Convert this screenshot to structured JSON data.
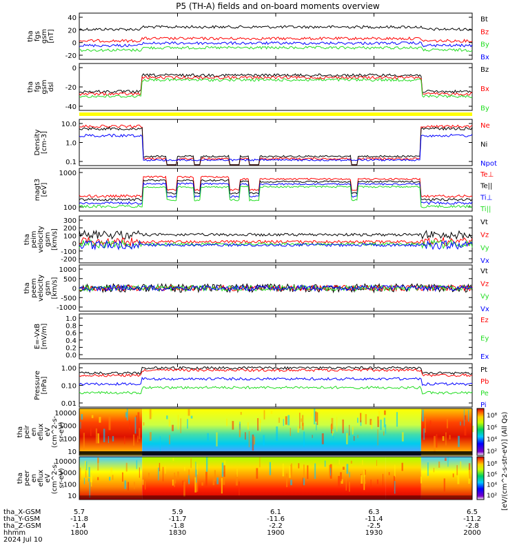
{
  "title": "P5 (TH-A) fields and on-board moments overview",
  "footer": {
    "date": "2024 Jul 10",
    "row_labels": [
      "tha_X-GSM",
      "tha_Y-GSM",
      "tha_Z-GSM",
      "hhmm"
    ],
    "columns": [
      {
        "x": "5.7",
        "y": "-11.8",
        "z": "-1.4",
        "hhmm": "1800"
      },
      {
        "x": "5.9",
        "y": "-11.7",
        "z": "-1.8",
        "hhmm": "1830"
      },
      {
        "x": "6.1",
        "y": "-11.6",
        "z": "-2.2",
        "hhmm": "1900"
      },
      {
        "x": "6.3",
        "y": "-11.4",
        "z": "-2.5",
        "hhmm": "1930"
      },
      {
        "x": "6.5",
        "y": "-11.2",
        "z": "-2.8",
        "hhmm": "2000"
      }
    ]
  },
  "colorbar": {
    "label": "[eV/(cm^2-s-str-eV)] (All Qs)",
    "ticks": [
      "10⁸",
      "10⁶",
      "10⁴",
      "10²"
    ],
    "ticks_lower": [
      "10⁸",
      "10⁶",
      "10⁴",
      "10²"
    ]
  },
  "colors": {
    "black": "#000000",
    "red": "#ff0000",
    "green": "#22dd22",
    "blue": "#0000ff",
    "yellow": "#ffff00"
  },
  "chart_data": [
    {
      "id": "fgs_gsm",
      "type": "line",
      "ylabel": [
        "tha",
        "fgs",
        "gsm",
        "[nT]"
      ],
      "yticks": [
        "40",
        "20",
        "0",
        "-20"
      ],
      "ylim": [
        -30,
        55
      ],
      "series": [
        {
          "name": "Bt",
          "color": "#000000"
        },
        {
          "name": "Bz",
          "color": "#ff0000"
        },
        {
          "name": "By",
          "color": "#22dd22"
        },
        {
          "name": "Bx",
          "color": "#0000ff"
        }
      ]
    },
    {
      "id": "fgs_dsl",
      "type": "line",
      "ylabel": [
        "tha",
        "fgs",
        "gsm",
        "dsl"
      ],
      "yticks": [
        "0",
        "-20",
        "-40"
      ],
      "ylim": [
        -55,
        8
      ],
      "series": [
        {
          "name": "Bz",
          "color": "#000000"
        },
        {
          "name": "Bx",
          "color": "#ff0000"
        },
        {
          "name": "By",
          "color": "#22dd22"
        }
      ]
    },
    {
      "id": "density",
      "type": "line",
      "ylabel": [
        "Density",
        "[cm-3]"
      ],
      "yticks": [
        "10.0",
        "1.0",
        "0.1"
      ],
      "log": true,
      "ylim": [
        0.08,
        30
      ],
      "series": [
        {
          "name": "Ne",
          "color": "#ff0000"
        },
        {
          "name": "Ni",
          "color": "#000000"
        },
        {
          "name": "Npot",
          "color": "#0000ff"
        }
      ]
    },
    {
      "id": "temp",
      "type": "line",
      "ylabel": [
        "magt3",
        "[eV]"
      ],
      "yticks": [
        "1000",
        "100"
      ],
      "log": true,
      "ylim": [
        20,
        3000
      ],
      "series": [
        {
          "name": "Te⊥",
          "color": "#ff0000"
        },
        {
          "name": "Te||",
          "color": "#000000"
        },
        {
          "name": "Ti⊥",
          "color": "#0000ff"
        },
        {
          "name": "Ti||",
          "color": "#22dd22"
        }
      ]
    },
    {
      "id": "peim",
      "type": "line",
      "ylabel": [
        "tha",
        "peim",
        "velocity",
        "gsm",
        "[km/s]"
      ],
      "yticks": [
        "300",
        "200",
        "100",
        "0",
        "-100",
        "-200"
      ],
      "ylim": [
        -220,
        330
      ],
      "series": [
        {
          "name": "Vt",
          "color": "#000000"
        },
        {
          "name": "Vz",
          "color": "#ff0000"
        },
        {
          "name": "Vy",
          "color": "#22dd22"
        },
        {
          "name": "Vx",
          "color": "#0000ff"
        }
      ]
    },
    {
      "id": "peem",
      "type": "line",
      "ylabel": [
        "tha",
        "peem",
        "velocity",
        "gsm",
        "[km/s]"
      ],
      "yticks": [
        "1000",
        "500",
        "0",
        "-500",
        "-1000"
      ],
      "ylim": [
        -1050,
        1100
      ],
      "series": [
        {
          "name": "Vt",
          "color": "#000000"
        },
        {
          "name": "Vz",
          "color": "#ff0000"
        },
        {
          "name": "Vy",
          "color": "#22dd22"
        },
        {
          "name": "Vx",
          "color": "#0000ff"
        }
      ]
    },
    {
      "id": "efield",
      "type": "line",
      "ylabel": [
        "E=-VxB",
        "[mV/m]"
      ],
      "yticks": [
        "1.0",
        "0.8",
        "0.6",
        "0.4",
        "0.2",
        "0.0"
      ],
      "ylim": [
        0,
        1
      ],
      "series": [
        {
          "name": "Ez",
          "color": "#ff0000"
        },
        {
          "name": "Ey",
          "color": "#22dd22"
        },
        {
          "name": "Ex",
          "color": "#0000ff"
        }
      ]
    },
    {
      "id": "pressure",
      "type": "line",
      "ylabel": [
        "Pressure",
        "[nPa]"
      ],
      "yticks": [
        "1.00",
        "0.10",
        "0.01"
      ],
      "log": true,
      "ylim": [
        0.003,
        1.2
      ],
      "series": [
        {
          "name": "Pt",
          "color": "#000000"
        },
        {
          "name": "Pb",
          "color": "#ff0000"
        },
        {
          "name": "Pe",
          "color": "#22dd22"
        },
        {
          "name": "Pi",
          "color": "#0000ff"
        }
      ]
    },
    {
      "id": "peir",
      "type": "heatmap",
      "ylabel": [
        "tha",
        "peir",
        "en",
        "eflux",
        "eV",
        "(cm^2-s-",
        "sr-eV)"
      ],
      "yticks": [
        "10000",
        "1000",
        "100",
        "10"
      ]
    },
    {
      "id": "peer",
      "type": "heatmap",
      "ylabel": [
        "tha",
        "peer",
        "en",
        "eflux",
        "eV",
        "(cm^2-s-",
        "sr-eV)"
      ],
      "yticks": [
        "10000",
        "1000",
        "100",
        "10"
      ]
    }
  ]
}
